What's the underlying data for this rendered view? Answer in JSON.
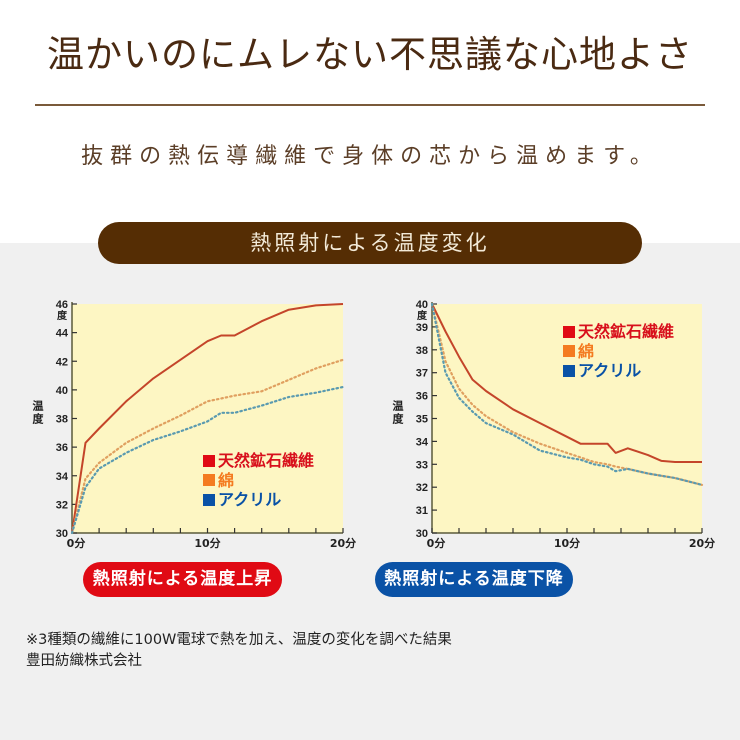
{
  "header": {
    "title": "温かいのにムレない不思議な心地よさ",
    "subtitle": "抜群の熱伝導繊維で身体の芯から温めます。"
  },
  "banner": {
    "label": "熱照射による温度変化"
  },
  "legend": [
    {
      "label": "天然鉱石繊維",
      "color": "#e00a14"
    },
    {
      "label": "綿",
      "color": "#f47b20"
    },
    {
      "label": "アクリル",
      "color": "#0a52a6"
    }
  ],
  "colors": {
    "plot_bg": "#fdf6c3",
    "line_red": "#c4452a",
    "line_orange": "#e0a060",
    "line_blue": "#5a9ab0",
    "axis": "#5a5a3a"
  },
  "buttons": {
    "rise": "熱照射による温度上昇",
    "fall": "熱照射による温度下降"
  },
  "note": {
    "line1": "※3種類の繊維に100W電球で熱を加え、温度の変化を調べた結果",
    "line2": "豊田紡織株式会社"
  },
  "chart_data": [
    {
      "type": "line",
      "title": "熱照射による温度上昇",
      "xlabel": "分",
      "ylabel": "温度",
      "yunit": "度",
      "xlim": [
        0,
        20
      ],
      "ylim": [
        30,
        46
      ],
      "xticks": [
        0,
        2,
        4,
        6,
        8,
        10,
        12,
        14,
        16,
        18,
        20
      ],
      "xtick_labels": [
        "0分",
        "10分",
        "20分"
      ],
      "yticks": [
        30,
        32,
        34,
        36,
        38,
        40,
        42,
        44,
        46
      ],
      "x": [
        0,
        1,
        2,
        4,
        6,
        8,
        10,
        11,
        12,
        14,
        16,
        18,
        20
      ],
      "series": [
        {
          "name": "天然鉱石繊維",
          "style": "solid",
          "values": [
            30,
            36.3,
            37.3,
            39.2,
            40.8,
            42.1,
            43.4,
            43.8,
            43.8,
            44.8,
            45.6,
            45.9,
            46.0
          ]
        },
        {
          "name": "綿",
          "style": "dotted",
          "values": [
            30,
            33.8,
            34.9,
            36.3,
            37.3,
            38.2,
            39.2,
            39.4,
            39.6,
            39.9,
            40.7,
            41.5,
            42.1
          ]
        },
        {
          "name": "アクリル",
          "style": "dotted",
          "values": [
            30,
            33.2,
            34.5,
            35.6,
            36.5,
            37.1,
            37.8,
            38.4,
            38.4,
            38.9,
            39.5,
            39.8,
            40.2
          ]
        }
      ],
      "legend_position": "lower-right",
      "grid": false
    },
    {
      "type": "line",
      "title": "熱照射による温度下降",
      "xlabel": "分",
      "ylabel": "温度",
      "yunit": "度",
      "xlim": [
        0,
        20
      ],
      "ylim": [
        30,
        40
      ],
      "xticks": [
        0,
        2,
        4,
        6,
        8,
        10,
        12,
        14,
        16,
        18,
        20
      ],
      "xtick_labels": [
        "0分",
        "10分",
        "20分"
      ],
      "yticks": [
        30,
        31,
        32,
        33,
        34,
        35,
        36,
        37,
        38,
        39,
        40
      ],
      "x": [
        0,
        1,
        2,
        3,
        4,
        6,
        8,
        10,
        11,
        12,
        13,
        13.6,
        14.5,
        16,
        17,
        18,
        20
      ],
      "series": [
        {
          "name": "天然鉱石繊維",
          "style": "solid",
          "values": [
            40,
            38.8,
            37.7,
            36.7,
            36.2,
            35.4,
            34.8,
            34.2,
            33.9,
            33.9,
            33.9,
            33.5,
            33.7,
            33.4,
            33.15,
            33.1,
            33.1
          ]
        },
        {
          "name": "綿",
          "style": "dotted",
          "values": [
            40,
            37.5,
            36.3,
            35.6,
            35.1,
            34.4,
            33.9,
            33.5,
            33.3,
            33.1,
            33.0,
            32.9,
            32.8,
            32.6,
            32.5,
            32.4,
            32.1
          ]
        },
        {
          "name": "アクリル",
          "style": "dotted",
          "values": [
            40,
            37.0,
            35.9,
            35.3,
            34.8,
            34.3,
            33.6,
            33.3,
            33.2,
            33.0,
            32.9,
            32.7,
            32.8,
            32.6,
            32.5,
            32.4,
            32.1
          ]
        }
      ],
      "legend_position": "upper-right",
      "grid": false
    }
  ]
}
